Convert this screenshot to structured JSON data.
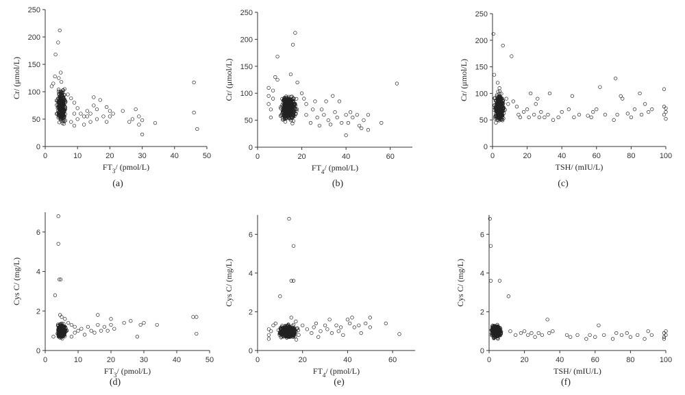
{
  "figure": {
    "marker_color": "#222222",
    "axis_color": "#333333"
  },
  "chart_data": [
    {
      "id": "a",
      "type": "scatter",
      "label": "(a)",
      "xlabel": {
        "pre": "FT",
        "sub": "3",
        "post": "/ (pmol/L)"
      },
      "ylabel": "Cr/ (μmol/L)",
      "xlim": [
        0,
        50
      ],
      "ylim": [
        0,
        250
      ],
      "xticks": [
        0,
        10,
        20,
        30,
        40,
        50
      ],
      "yticks": [
        0,
        50,
        100,
        150,
        200,
        250
      ],
      "cluster": {
        "x": [
          3.0,
          7.0
        ],
        "y": [
          30,
          115
        ],
        "n": 300
      },
      "points": [
        [
          2,
          110
        ],
        [
          2.5,
          115
        ],
        [
          3,
          128
        ],
        [
          3.2,
          168
        ],
        [
          4,
          190
        ],
        [
          4.2,
          125
        ],
        [
          4.5,
          212
        ],
        [
          4.8,
          135
        ],
        [
          5,
          118
        ],
        [
          6,
          105
        ],
        [
          7,
          95
        ],
        [
          8,
          88
        ],
        [
          8,
          45
        ],
        [
          9,
          80
        ],
        [
          9,
          60
        ],
        [
          9,
          38
        ],
        [
          10,
          70
        ],
        [
          10,
          50
        ],
        [
          11,
          60
        ],
        [
          12,
          55
        ],
        [
          12,
          40
        ],
        [
          13,
          55
        ],
        [
          13,
          65
        ],
        [
          14,
          60
        ],
        [
          14,
          45
        ],
        [
          15,
          75
        ],
        [
          15,
          90
        ],
        [
          16,
          50
        ],
        [
          16,
          68
        ],
        [
          17,
          85
        ],
        [
          18,
          55
        ],
        [
          19,
          45
        ],
        [
          19,
          72
        ],
        [
          20,
          65
        ],
        [
          20,
          55
        ],
        [
          21,
          60
        ],
        [
          24,
          65
        ],
        [
          26,
          45
        ],
        [
          27,
          50
        ],
        [
          28,
          68
        ],
        [
          29,
          55
        ],
        [
          29,
          40
        ],
        [
          30,
          22
        ],
        [
          30,
          48
        ],
        [
          34,
          43
        ],
        [
          46,
          117
        ],
        [
          46,
          62
        ],
        [
          47,
          32
        ]
      ]
    },
    {
      "id": "b",
      "type": "scatter",
      "label": "(b)",
      "xlabel": {
        "pre": "FT",
        "sub": "4",
        "post": "/ (pmol/L)"
      },
      "ylabel": "Cr/ (μmol/L)",
      "xlim": [
        0,
        70
      ],
      "ylim": [
        0,
        250
      ],
      "xticks": [
        0,
        20,
        40,
        60
      ],
      "yticks": [
        0,
        50,
        100,
        150,
        200,
        250
      ],
      "cluster": {
        "x": [
          9,
          19
        ],
        "y": [
          35,
          110
        ],
        "n": 420
      },
      "points": [
        [
          5,
          110
        ],
        [
          5,
          95
        ],
        [
          5,
          80
        ],
        [
          6,
          70
        ],
        [
          6,
          55
        ],
        [
          7,
          90
        ],
        [
          7,
          105
        ],
        [
          8,
          130
        ],
        [
          9,
          168
        ],
        [
          9,
          125
        ],
        [
          15,
          135
        ],
        [
          16,
          190
        ],
        [
          17,
          212
        ],
        [
          18,
          120
        ],
        [
          20,
          100
        ],
        [
          21,
          90
        ],
        [
          22,
          80
        ],
        [
          22,
          60
        ],
        [
          24,
          45
        ],
        [
          25,
          70
        ],
        [
          26,
          85
        ],
        [
          27,
          55
        ],
        [
          28,
          40
        ],
        [
          29,
          70
        ],
        [
          30,
          60
        ],
        [
          31,
          85
        ],
        [
          32,
          50
        ],
        [
          33,
          42
        ],
        [
          34,
          95
        ],
        [
          35,
          65
        ],
        [
          36,
          55
        ],
        [
          37,
          85
        ],
        [
          38,
          45
        ],
        [
          40,
          22
        ],
        [
          40,
          60
        ],
        [
          41,
          45
        ],
        [
          42,
          65
        ],
        [
          43,
          55
        ],
        [
          45,
          60
        ],
        [
          46,
          40
        ],
        [
          47,
          35
        ],
        [
          48,
          50
        ],
        [
          50,
          32
        ],
        [
          50,
          60
        ],
        [
          56,
          45
        ],
        [
          63,
          118
        ]
      ]
    },
    {
      "id": "c",
      "type": "scatter",
      "label": "(c)",
      "xlabel": {
        "pre": "TSH/ (mIU/L)",
        "sub": "",
        "post": ""
      },
      "ylabel": "Cr/ (μmol/L)",
      "xlim": [
        0,
        100
      ],
      "ylim": [
        0,
        250
      ],
      "xticks": [
        0,
        20,
        40,
        60,
        80,
        100
      ],
      "yticks": [
        0,
        50,
        100,
        150,
        200,
        250
      ],
      "cluster": {
        "x": [
          0,
          8
        ],
        "y": [
          35,
          110
        ],
        "n": 380
      },
      "points": [
        [
          0.5,
          212
        ],
        [
          1,
          135
        ],
        [
          3,
          120
        ],
        [
          4,
          110
        ],
        [
          6,
          190
        ],
        [
          8,
          90
        ],
        [
          9,
          80
        ],
        [
          11,
          170
        ],
        [
          12,
          85
        ],
        [
          14,
          75
        ],
        [
          15,
          60
        ],
        [
          16,
          55
        ],
        [
          18,
          65
        ],
        [
          20,
          70
        ],
        [
          21,
          55
        ],
        [
          22,
          100
        ],
        [
          24,
          60
        ],
        [
          25,
          80
        ],
        [
          26,
          90
        ],
        [
          27,
          55
        ],
        [
          28,
          65
        ],
        [
          30,
          55
        ],
        [
          32,
          60
        ],
        [
          33,
          100
        ],
        [
          35,
          50
        ],
        [
          38,
          55
        ],
        [
          40,
          65
        ],
        [
          44,
          70
        ],
        [
          46,
          95
        ],
        [
          47,
          55
        ],
        [
          50,
          60
        ],
        [
          55,
          58
        ],
        [
          57,
          55
        ],
        [
          58,
          65
        ],
        [
          60,
          70
        ],
        [
          62,
          112
        ],
        [
          65,
          60
        ],
        [
          70,
          50
        ],
        [
          71,
          128
        ],
        [
          72,
          60
        ],
        [
          74,
          95
        ],
        [
          75,
          90
        ],
        [
          78,
          62
        ],
        [
          80,
          55
        ],
        [
          82,
          70
        ],
        [
          85,
          100
        ],
        [
          86,
          60
        ],
        [
          88,
          80
        ],
        [
          90,
          65
        ],
        [
          92,
          70
        ],
        [
          99,
          108
        ],
        [
          99,
          75
        ],
        [
          100,
          72
        ],
        [
          100,
          65
        ],
        [
          99,
          60
        ],
        [
          100,
          52
        ]
      ]
    },
    {
      "id": "d",
      "type": "scatter",
      "label": "(d)",
      "xlabel": {
        "pre": "FT",
        "sub": "3",
        "post": "/ (pmol/L)"
      },
      "ylabel": "Cys C/ (mg/L)",
      "xlim": [
        0,
        50
      ],
      "ylim": [
        0,
        7
      ],
      "xticks": [
        0,
        10,
        20,
        30,
        40,
        50
      ],
      "yticks": [
        0,
        2,
        4,
        6
      ],
      "cluster": {
        "x": [
          3.0,
          7.0
        ],
        "y": [
          0.45,
          1.55
        ],
        "n": 300
      },
      "points": [
        [
          2.5,
          0.7
        ],
        [
          3,
          2.8
        ],
        [
          4,
          6.8
        ],
        [
          4,
          5.4
        ],
        [
          4.3,
          3.6
        ],
        [
          4.7,
          3.6
        ],
        [
          4.5,
          1.8
        ],
        [
          5,
          1.7
        ],
        [
          6,
          1.6
        ],
        [
          7,
          1.4
        ],
        [
          8,
          1.3
        ],
        [
          8,
          0.7
        ],
        [
          9,
          1.2
        ],
        [
          9,
          0.9
        ],
        [
          10,
          1.0
        ],
        [
          11,
          1.1
        ],
        [
          12,
          0.8
        ],
        [
          13,
          1.2
        ],
        [
          14,
          1.0
        ],
        [
          15,
          0.9
        ],
        [
          16,
          1.3
        ],
        [
          16,
          1.8
        ],
        [
          17,
          1.0
        ],
        [
          18,
          1.2
        ],
        [
          19,
          1.0
        ],
        [
          20,
          1.3
        ],
        [
          20,
          1.6
        ],
        [
          21,
          1.1
        ],
        [
          24,
          1.4
        ],
        [
          26,
          1.5
        ],
        [
          28,
          0.7
        ],
        [
          29,
          1.3
        ],
        [
          30,
          1.4
        ],
        [
          34,
          1.3
        ],
        [
          45,
          1.7
        ],
        [
          46,
          1.7
        ],
        [
          46,
          0.85
        ]
      ]
    },
    {
      "id": "e",
      "type": "scatter",
      "label": "(e)",
      "xlabel": {
        "pre": "FT",
        "sub": "4",
        "post": "/ (pmol/L)"
      },
      "ylabel": "Cys C/ (mg/L)",
      "xlim": [
        0,
        70
      ],
      "ylim": [
        0,
        7
      ],
      "xticks": [
        0,
        20,
        40,
        60
      ],
      "yticks": [
        0,
        2,
        4,
        6
      ],
      "cluster": {
        "x": [
          8,
          19
        ],
        "y": [
          0.5,
          1.45
        ],
        "n": 420
      },
      "points": [
        [
          5,
          0.8
        ],
        [
          5,
          0.6
        ],
        [
          5,
          1.1
        ],
        [
          6,
          1.0
        ],
        [
          7,
          1.3
        ],
        [
          8,
          1.4
        ],
        [
          10,
          2.8
        ],
        [
          14,
          6.8
        ],
        [
          15,
          3.6
        ],
        [
          16,
          5.4
        ],
        [
          16,
          3.6
        ],
        [
          15,
          1.7
        ],
        [
          17,
          1.5
        ],
        [
          20,
          1.3
        ],
        [
          22,
          1.1
        ],
        [
          24,
          0.9
        ],
        [
          25,
          1.2
        ],
        [
          26,
          1.4
        ],
        [
          27,
          0.7
        ],
        [
          28,
          1.0
        ],
        [
          30,
          1.3
        ],
        [
          31,
          1.1
        ],
        [
          32,
          1.6
        ],
        [
          33,
          0.9
        ],
        [
          35,
          1.3
        ],
        [
          36,
          1.0
        ],
        [
          37,
          1.2
        ],
        [
          38,
          0.8
        ],
        [
          40,
          1.6
        ],
        [
          41,
          1.4
        ],
        [
          42,
          1.7
        ],
        [
          43,
          1.2
        ],
        [
          45,
          1.3
        ],
        [
          46,
          0.9
        ],
        [
          48,
          1.4
        ],
        [
          50,
          1.7
        ],
        [
          50,
          1.2
        ],
        [
          57,
          1.4
        ],
        [
          63,
          0.85
        ]
      ]
    },
    {
      "id": "f",
      "type": "scatter",
      "label": "(f)",
      "xlabel": {
        "pre": "TSH/ (mIU/L)",
        "sub": "",
        "post": ""
      },
      "ylabel": "Cys C/ (mg/L)",
      "xlim": [
        0,
        100
      ],
      "ylim": [
        0,
        7
      ],
      "xticks": [
        0,
        20,
        40,
        60,
        80,
        100
      ],
      "yticks": [
        0,
        2,
        4,
        6
      ],
      "cluster": {
        "x": [
          0,
          8
        ],
        "y": [
          0.5,
          1.5
        ],
        "n": 380
      },
      "points": [
        [
          0.5,
          6.8
        ],
        [
          1,
          5.4
        ],
        [
          1,
          3.6
        ],
        [
          6,
          3.6
        ],
        [
          11,
          2.8
        ],
        [
          12,
          1.0
        ],
        [
          15,
          0.8
        ],
        [
          18,
          0.9
        ],
        [
          20,
          1.0
        ],
        [
          22,
          0.8
        ],
        [
          24,
          0.9
        ],
        [
          26,
          0.7
        ],
        [
          28,
          0.9
        ],
        [
          30,
          0.8
        ],
        [
          33,
          1.6
        ],
        [
          34,
          0.9
        ],
        [
          36,
          1.0
        ],
        [
          44,
          0.8
        ],
        [
          46,
          0.7
        ],
        [
          50,
          0.8
        ],
        [
          55,
          0.6
        ],
        [
          57,
          0.8
        ],
        [
          60,
          0.7
        ],
        [
          62,
          1.3
        ],
        [
          65,
          0.8
        ],
        [
          70,
          0.6
        ],
        [
          72,
          0.9
        ],
        [
          75,
          0.8
        ],
        [
          78,
          0.9
        ],
        [
          80,
          0.7
        ],
        [
          84,
          0.8
        ],
        [
          88,
          0.6
        ],
        [
          90,
          1.0
        ],
        [
          92,
          0.8
        ],
        [
          99,
          0.9
        ],
        [
          99,
          0.7
        ],
        [
          100,
          1.0
        ],
        [
          100,
          0.8
        ],
        [
          99,
          0.6
        ]
      ]
    }
  ]
}
